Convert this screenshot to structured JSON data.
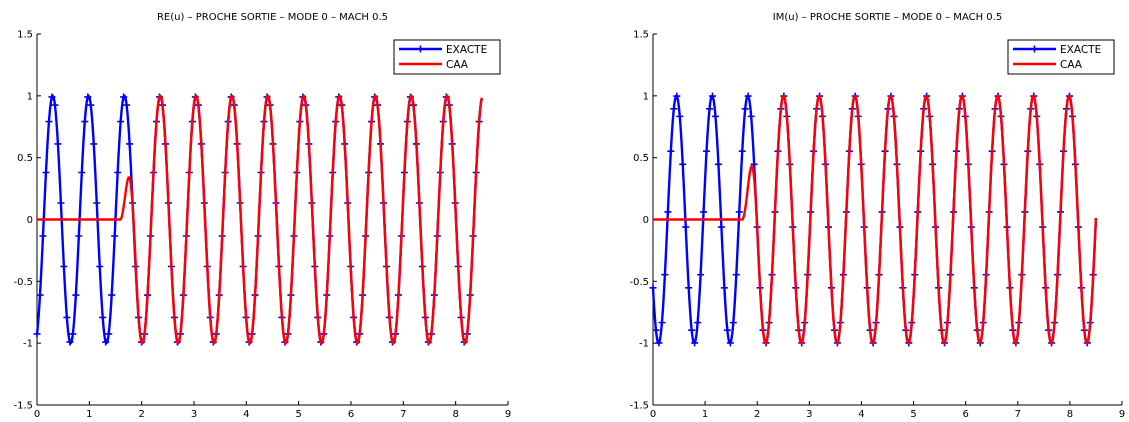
{
  "chart_data": [
    {
      "type": "line",
      "title": "RE(u) – PROCHE SORTIE – MODE 0 – MACH 0.5",
      "xlabel": "",
      "ylabel": "",
      "xlim": [
        0,
        9
      ],
      "ylim": [
        -1.5,
        1.5
      ],
      "xticks": [
        "0",
        "1",
        "2",
        "3",
        "4",
        "5",
        "6",
        "7",
        "8",
        "9"
      ],
      "yticks": [
        "1.5",
        "1",
        "0.5",
        "0",
        "-0.5",
        "-1",
        "-1.5"
      ],
      "legend_position": "top-right",
      "grid": false,
      "series": [
        {
          "name": "EXACTE",
          "color": "#0000ff",
          "marker": "plus",
          "model": {
            "kind": "cos",
            "amplitude": 1,
            "period": 0.685,
            "phase_x": 0.3,
            "x_start": 0,
            "x_end": 8.5
          }
        },
        {
          "name": "CAA",
          "color": "#ff0000",
          "marker": "none",
          "model": {
            "kind": "cos_ramp",
            "amplitude": 1,
            "period": 0.685,
            "phase_x": 0.3,
            "x_start": 0,
            "x_end": 8.5,
            "onset": 1.6,
            "bump": 0.08
          }
        }
      ]
    },
    {
      "type": "line",
      "title": "IM(u) – PROCHE SORTIE – MODE 0 – MACH 0.5",
      "xlabel": "",
      "ylabel": "",
      "xlim": [
        0,
        9
      ],
      "ylim": [
        -1.5,
        1.5
      ],
      "xticks": [
        "0",
        "1",
        "2",
        "3",
        "4",
        "5",
        "6",
        "7",
        "8",
        "9"
      ],
      "yticks": [
        "1.5",
        "1",
        "0.5",
        "0",
        "-0.5",
        "-1",
        "-1.5"
      ],
      "legend_position": "top-right",
      "grid": false,
      "series": [
        {
          "name": "EXACTE",
          "color": "#0000ff",
          "marker": "plus",
          "model": {
            "kind": "cos",
            "amplitude": 1,
            "period": 0.685,
            "phase_x": 0.45,
            "x_start": 0,
            "x_end": 8.5
          }
        },
        {
          "name": "CAA",
          "color": "#ff0000",
          "marker": "none",
          "model": {
            "kind": "cos_ramp",
            "amplitude": 1,
            "period": 0.685,
            "phase_x": 0.45,
            "x_start": 0,
            "x_end": 8.5,
            "onset": 1.72,
            "bump": 0.09
          }
        }
      ]
    }
  ]
}
